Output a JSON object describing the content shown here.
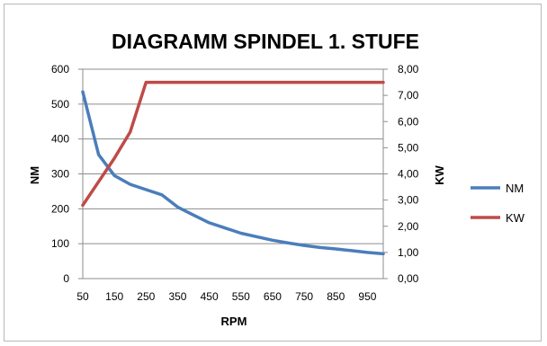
{
  "chart_data": {
    "type": "line",
    "title": "DIAGRAMM SPINDEL 1. STUFE",
    "xlabel": "RPM",
    "ylabel_left": "NM",
    "ylabel_right": "KW",
    "x_ticks": [
      "50",
      "150",
      "250",
      "350",
      "450",
      "550",
      "650",
      "750",
      "850",
      "950"
    ],
    "y_left_ticks": [
      "0",
      "100",
      "200",
      "300",
      "400",
      "500",
      "600"
    ],
    "y_right_ticks": [
      "0,00",
      "1,00",
      "2,00",
      "3,00",
      "4,00",
      "5,00",
      "6,00",
      "7,00",
      "8,00"
    ],
    "ylim_left": [
      0,
      600
    ],
    "ylim_right": [
      0,
      8
    ],
    "xlim": [
      50,
      1000
    ],
    "grid": "horizontal",
    "legend_position": "right",
    "series": [
      {
        "name": "NM",
        "axis": "left",
        "color": "#4a7ebb",
        "x": [
          50,
          100,
          150,
          200,
          250,
          300,
          350,
          400,
          450,
          500,
          550,
          600,
          650,
          700,
          750,
          800,
          850,
          900,
          950,
          1000
        ],
        "y": [
          535,
          355,
          295,
          270,
          255,
          240,
          205,
          182,
          160,
          145,
          130,
          120,
          110,
          102,
          95,
          89,
          85,
          80,
          75,
          71
        ]
      },
      {
        "name": "KW",
        "axis": "right",
        "color": "#be4b48",
        "x": [
          50,
          100,
          150,
          200,
          250,
          300,
          350,
          400,
          450,
          500,
          550,
          600,
          650,
          700,
          750,
          800,
          850,
          900,
          950,
          1000
        ],
        "y": [
          2.8,
          3.7,
          4.6,
          5.6,
          7.5,
          7.5,
          7.5,
          7.5,
          7.5,
          7.5,
          7.5,
          7.5,
          7.5,
          7.5,
          7.5,
          7.5,
          7.5,
          7.5,
          7.5,
          7.5
        ]
      }
    ]
  }
}
